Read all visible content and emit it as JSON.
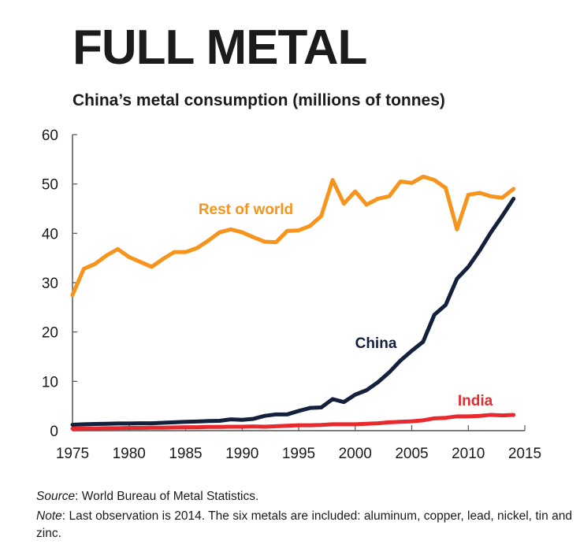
{
  "header": {
    "title": "FULL METAL",
    "subtitle": "China’s metal consumption (millions of tonnes)"
  },
  "footer": {
    "source_label": "Source",
    "source_text": ":  World Bureau of Metal Statistics.",
    "note_label": "Note",
    "note_text": ": Last observation is 2014. The six metals are included: aluminum, copper, lead, nickel, tin and zinc."
  },
  "chart_data": {
    "type": "line",
    "title": "China’s metal consumption (millions of tonnes)",
    "xlabel": "",
    "ylabel": "",
    "xlim": [
      1975,
      2015
    ],
    "ylim": [
      0,
      60
    ],
    "xticks": [
      1975,
      1980,
      1985,
      1990,
      1995,
      2000,
      2005,
      2010,
      2015
    ],
    "yticks": [
      0,
      10,
      20,
      30,
      40,
      50,
      60
    ],
    "grid": false,
    "legend": "inline labels",
    "x": [
      1975,
      1976,
      1977,
      1978,
      1979,
      1980,
      1981,
      1982,
      1983,
      1984,
      1985,
      1986,
      1987,
      1988,
      1989,
      1990,
      1991,
      1992,
      1993,
      1994,
      1995,
      1996,
      1997,
      1998,
      1999,
      2000,
      2001,
      2002,
      2003,
      2004,
      2005,
      2006,
      2007,
      2008,
      2009,
      2010,
      2011,
      2012,
      2013,
      2014
    ],
    "series": [
      {
        "name": "Rest of world",
        "color": "#f7941d",
        "values": [
          27.5,
          32.8,
          33.8,
          35.5,
          36.8,
          35.2,
          34.2,
          33.2,
          34.8,
          36.2,
          36.2,
          37.0,
          38.5,
          40.2,
          40.8,
          40.2,
          39.2,
          38.3,
          38.2,
          40.5,
          40.6,
          41.5,
          43.5,
          50.8,
          46.0,
          48.5,
          45.8,
          47.0,
          47.5,
          50.5,
          50.2,
          51.5,
          50.8,
          49.2,
          40.8,
          47.8,
          48.2,
          47.5,
          47.2,
          49.0
        ]
      },
      {
        "name": "China",
        "color": "#14213d",
        "values": [
          1.2,
          1.3,
          1.35,
          1.4,
          1.45,
          1.45,
          1.5,
          1.5,
          1.6,
          1.7,
          1.8,
          1.85,
          1.95,
          2.0,
          2.3,
          2.2,
          2.4,
          3.0,
          3.3,
          3.3,
          4.0,
          4.6,
          4.7,
          6.4,
          5.8,
          7.3,
          8.2,
          9.8,
          11.8,
          14.2,
          16.2,
          18.0,
          23.5,
          25.5,
          30.8,
          33.2,
          36.5,
          40.2,
          43.5,
          47.0
        ]
      },
      {
        "name": "India",
        "color": "#e8292e",
        "values": [
          0.4,
          0.45,
          0.45,
          0.5,
          0.5,
          0.55,
          0.55,
          0.6,
          0.6,
          0.65,
          0.7,
          0.7,
          0.75,
          0.75,
          0.8,
          0.8,
          0.85,
          0.8,
          0.9,
          1.0,
          1.1,
          1.1,
          1.15,
          1.3,
          1.3,
          1.3,
          1.4,
          1.5,
          1.7,
          1.8,
          1.9,
          2.1,
          2.5,
          2.6,
          2.9,
          2.9,
          3.0,
          3.2,
          3.1,
          3.2
        ]
      }
    ]
  }
}
